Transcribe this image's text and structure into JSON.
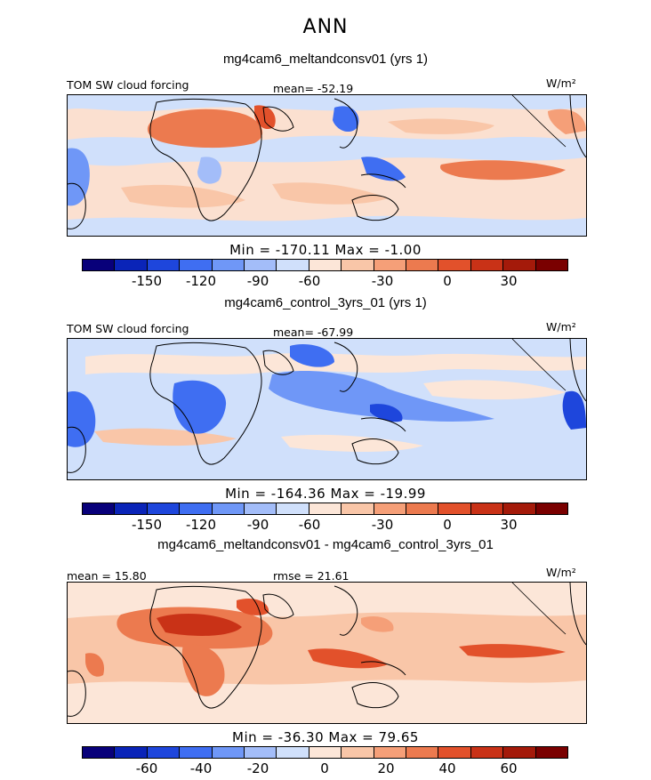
{
  "figure": {
    "season": "ANN",
    "units": "W/m²"
  },
  "panels": [
    {
      "case_title": "mg4cam6_meltandconsv01 (yrs 1)",
      "variable": "TOM SW cloud forcing",
      "stat1": "mean= -52.19",
      "stat2": "",
      "minmax": "Min = -170.11 Max = -1.00",
      "tick_labels": [
        "-150",
        "-120",
        "-90",
        "-60",
        "-30",
        "0",
        "30"
      ]
    },
    {
      "case_title": "mg4cam6_control_3yrs_01 (yrs 1)",
      "variable": "TOM SW cloud forcing",
      "stat1": "mean= -67.99",
      "stat2": "",
      "minmax": "Min = -164.36 Max = -19.99",
      "tick_labels": [
        "-150",
        "-120",
        "-90",
        "-60",
        "-30",
        "0",
        "30"
      ]
    },
    {
      "case_title": "mg4cam6_meltandconsv01 - mg4cam6_control_3yrs_01",
      "variable": "",
      "stat1": "mean = 15.80",
      "stat2": "rmse = 21.61",
      "minmax": "Min = -36.30 Max = 79.65",
      "tick_labels": [
        "-60",
        "-40",
        "-20",
        "0",
        "20",
        "40",
        "60"
      ]
    }
  ],
  "chart_data": [
    {
      "type": "heatmap",
      "title": "mg4cam6_meltandconsv01 (yrs 1)",
      "variable": "TOM SW cloud forcing",
      "units": "W/m²",
      "mean": -52.19,
      "min": -170.11,
      "max": -1.0,
      "contour_levels": [
        -165,
        -150,
        -135,
        -120,
        -105,
        -90,
        -75,
        -60,
        -45,
        -30,
        -15,
        0,
        15,
        30,
        45
      ],
      "colorbar_ticks": [
        -150,
        -120,
        -90,
        -60,
        -30,
        0,
        30
      ]
    },
    {
      "type": "heatmap",
      "title": "mg4cam6_control_3yrs_01 (yrs 1)",
      "variable": "TOM SW cloud forcing",
      "units": "W/m²",
      "mean": -67.99,
      "min": -164.36,
      "max": -19.99,
      "contour_levels": [
        -165,
        -150,
        -135,
        -120,
        -105,
        -90,
        -75,
        -60,
        -45,
        -30,
        -15,
        0,
        15,
        30,
        45
      ],
      "colorbar_ticks": [
        -150,
        -120,
        -90,
        -60,
        -30,
        0,
        30
      ]
    },
    {
      "type": "heatmap",
      "title": "mg4cam6_meltandconsv01 - mg4cam6_control_3yrs_01",
      "units": "W/m²",
      "mean": 15.8,
      "rmse": 21.61,
      "min": -36.3,
      "max": 79.65,
      "contour_levels": [
        -70,
        -60,
        -50,
        -40,
        -30,
        -20,
        -10,
        0,
        10,
        20,
        30,
        40,
        50,
        60,
        70
      ],
      "colorbar_ticks": [
        -60,
        -40,
        -20,
        0,
        20,
        40,
        60
      ]
    }
  ],
  "colormap": [
    "#08007a",
    "#0a24b8",
    "#1e46dc",
    "#3f6ef2",
    "#6f97f7",
    "#a3bdf9",
    "#d0e0fb",
    "#fce6d8",
    "#f9c6a8",
    "#f59f78",
    "#ec7a4f",
    "#e2512b",
    "#c93217",
    "#a41a0a",
    "#7a0000"
  ]
}
